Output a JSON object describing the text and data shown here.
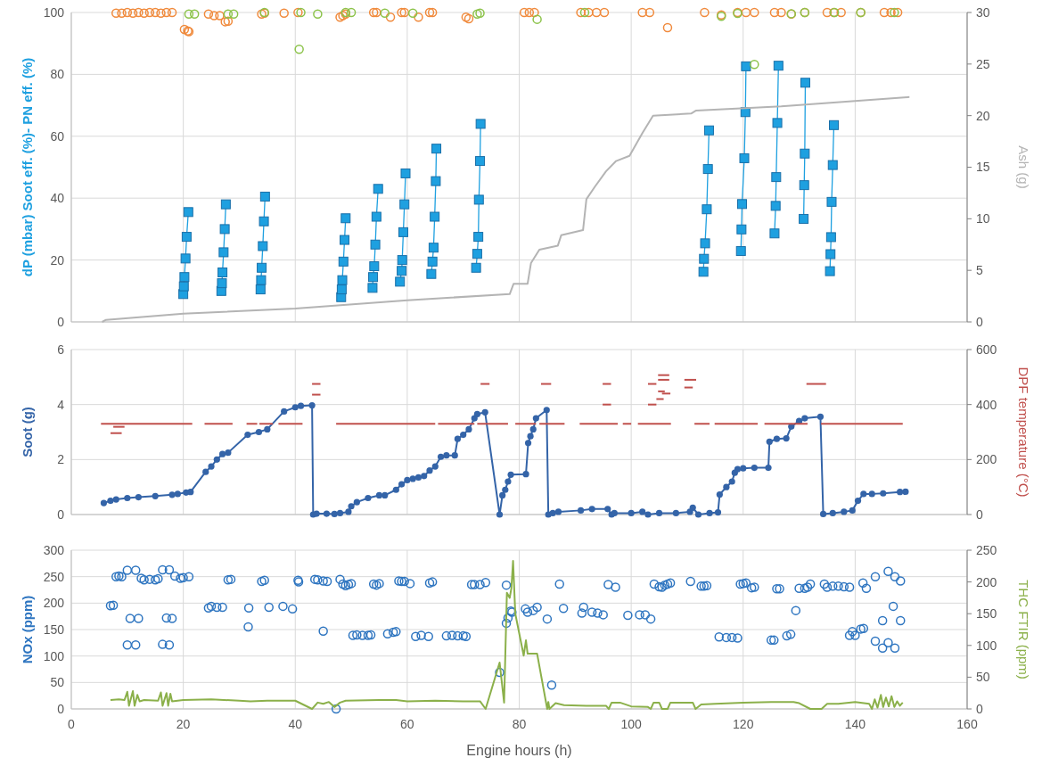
{
  "chart_data": [
    {
      "type": "line",
      "ylabel": "dP (mbar) Soot eff. (%)- PN eff. (%)",
      "y2label": "Ash (g)",
      "xlim": [
        0,
        160
      ],
      "xticks": [
        0,
        20,
        40,
        60,
        80,
        100,
        120,
        140,
        160
      ],
      "ylim": [
        0,
        100
      ],
      "yticks": [
        0,
        20,
        40,
        60,
        80,
        100
      ],
      "y2lim": [
        0,
        30
      ],
      "y2ticks": [
        0,
        5,
        10,
        15,
        20,
        25,
        30
      ],
      "grid": true,
      "tick_labels": "y",
      "series": [
        {
          "marker": "square",
          "color": "#1ea0e0",
          "x": [
            20.0,
            20.1,
            20.2,
            20.4,
            20.6,
            20.9
          ],
          "values": [
            9,
            11.5,
            14.5,
            20.5,
            27.5,
            35.5
          ]
        },
        {
          "marker": "square",
          "color": "#1ea0e0",
          "x": [
            26.8,
            26.9,
            27.0,
            27.2,
            27.4,
            27.6
          ],
          "values": [
            10,
            12.5,
            16,
            22.5,
            30,
            38
          ]
        },
        {
          "marker": "square",
          "color": "#1ea0e0",
          "x": [
            33.8,
            33.9,
            34.0,
            34.2,
            34.4,
            34.6
          ],
          "values": [
            10.5,
            13.5,
            17.5,
            24.5,
            32.5,
            40.5
          ]
        },
        {
          "marker": "square",
          "color": "#1ea0e0",
          "x": [
            48.2,
            48.3,
            48.4,
            48.6,
            48.8,
            49.0
          ],
          "values": [
            8,
            10.5,
            13.5,
            19.5,
            26.5,
            33.5
          ]
        },
        {
          "marker": "square",
          "color": "#1ea0e0",
          "x": [
            53.8,
            53.9,
            54.1,
            54.3,
            54.5,
            54.8
          ],
          "values": [
            11,
            14.5,
            18,
            25,
            34,
            43
          ]
        },
        {
          "marker": "square",
          "color": "#1ea0e0",
          "x": [
            58.7,
            59.0,
            59.1,
            59.3,
            59.5,
            59.7
          ],
          "values": [
            13,
            16.5,
            20,
            29,
            38,
            48
          ]
        },
        {
          "marker": "square",
          "color": "#1ea0e0",
          "x": [
            64.3,
            64.5,
            64.7,
            64.9,
            65.1,
            65.2
          ],
          "values": [
            15.5,
            19.5,
            24,
            34,
            45.5,
            56
          ]
        },
        {
          "marker": "square",
          "color": "#1ea0e0",
          "x": [
            72.3,
            72.5,
            72.7,
            72.8,
            73.0,
            73.1
          ],
          "values": [
            17.5,
            22,
            27.5,
            39.5,
            52,
            64
          ]
        },
        {
          "marker": "square",
          "color": "#1ea0e0",
          "x": [
            112.9,
            113.0,
            113.2,
            113.5,
            113.7,
            113.9
          ],
          "values": [
            16.2,
            20.4,
            25.4,
            36.4,
            49.4,
            61.9
          ]
        },
        {
          "marker": "square",
          "color": "#1ea0e0",
          "x": [
            119.6,
            119.7,
            119.8,
            120.2,
            120.4,
            120.5
          ],
          "values": [
            22.9,
            29.9,
            38.1,
            52.9,
            67.8,
            82.6
          ]
        },
        {
          "marker": "square",
          "color": "#1ea0e0",
          "x": [
            125.6,
            125.8,
            125.9,
            126.1,
            126.3
          ],
          "values": [
            28.6,
            37.5,
            46.8,
            64.3,
            82.8
          ]
        },
        {
          "marker": "square",
          "color": "#1ea0e0",
          "x": [
            130.8,
            130.9,
            131.0,
            131.1
          ],
          "values": [
            33.3,
            44.2,
            54.4,
            77.3
          ]
        },
        {
          "marker": "square",
          "color": "#1ea0e0",
          "x": [
            135.5,
            135.6,
            135.7,
            135.8,
            136.0,
            136.2
          ],
          "values": [
            16.4,
            21.9,
            27.4,
            38.8,
            50.7,
            63.6
          ]
        },
        {
          "type": "scatter",
          "marker": "circle",
          "color": "#f08a3c",
          "x": [
            8,
            9,
            10,
            11,
            12,
            13,
            14,
            15,
            16,
            17,
            18,
            20.2,
            20.8,
            21,
            24.5,
            25.5,
            26.5,
            27.5,
            28,
            34,
            34.5,
            38,
            40.5,
            48,
            48.5,
            49,
            54,
            54.5,
            57,
            59,
            59.5,
            62,
            64,
            64.5,
            70.5,
            71,
            80.9,
            81.8,
            82.7,
            91,
            92.4,
            93.8,
            95.2,
            102,
            103.3,
            106.5,
            113.1,
            116.1,
            119,
            120.5,
            122,
            125.6,
            126.8,
            128.6,
            131,
            135,
            136.2,
            137.5,
            141,
            145.2,
            146.4,
            147.6
          ],
          "values": [
            99.8,
            99.8,
            100,
            99.8,
            100,
            99.8,
            100,
            100,
            99.8,
            100,
            100,
            94.5,
            94,
            93.8,
            99.5,
            99,
            99,
            97,
            97.2,
            99.5,
            99.8,
            99.8,
            100,
            98.5,
            99,
            99.5,
            100,
            100,
            98.5,
            100,
            100,
            98.5,
            100,
            100,
            98.5,
            98,
            100,
            100,
            100,
            100,
            100,
            100,
            100,
            100,
            100,
            95.1,
            100,
            99.2,
            100,
            100,
            100,
            100,
            100,
            99.5,
            100,
            100,
            100,
            100,
            100,
            100,
            100,
            100
          ]
        },
        {
          "type": "scatter",
          "marker": "circle",
          "color": "#8cc34a",
          "x": [
            21,
            22,
            28,
            29,
            34.5,
            40.7,
            41,
            44,
            49,
            50,
            56,
            61,
            72.5,
            73,
            83.2,
            91.7,
            116.1,
            119,
            122,
            128.6,
            131,
            136.3,
            141,
            147
          ],
          "values": [
            99.5,
            99.5,
            99.5,
            99.5,
            100,
            88.1,
            100,
            99.5,
            100,
            100,
            99.8,
            99.8,
            99.5,
            99.8,
            97.8,
            100,
            98.8,
            99.7,
            83.2,
            99.6,
            100,
            100,
            100,
            100
          ]
        },
        {
          "axis": "y2",
          "marker": "none",
          "color": "#b4b4b4",
          "x": [
            5.5,
            6.2,
            20,
            40,
            60,
            78.3,
            79,
            81.5,
            82.1,
            83.6,
            86.9,
            87.5,
            91.4,
            92,
            93.5,
            95.5,
            97.3,
            99.7,
            102,
            103.9,
            110.7,
            111.6,
            126.8,
            149.7
          ],
          "values": [
            0,
            0.2,
            0.8,
            1.3,
            2.1,
            2.7,
            3.7,
            3.7,
            5.7,
            7.0,
            7.4,
            8.4,
            8.9,
            11.9,
            13.1,
            14.6,
            15.6,
            16.1,
            18.3,
            20.0,
            20.2,
            20.5,
            20.9,
            21.8
          ]
        }
      ]
    },
    {
      "type": "line",
      "ylabel": "Soot (g)",
      "y2label": "DPF temperature (°C)",
      "xlim": [
        0,
        160
      ],
      "xticks": [
        0,
        20,
        40,
        60,
        80,
        100,
        120,
        140,
        160
      ],
      "ylim": [
        0,
        6
      ],
      "yticks": [
        0,
        2,
        4,
        6
      ],
      "y2lim": [
        0,
        600
      ],
      "y2ticks": [
        0,
        200,
        400,
        600
      ],
      "grid": true,
      "tick_labels": "y",
      "series": [
        {
          "marker": "circle",
          "color": "#3464a8",
          "x": [
            5.8,
            7,
            8,
            10,
            12,
            15,
            18,
            19,
            20.5,
            21.3,
            24,
            25,
            26,
            27,
            28,
            31.5,
            33.5,
            35,
            38,
            40,
            41,
            43,
            43.2,
            43.8,
            45.6,
            47,
            48,
            49.5,
            50,
            51,
            53,
            55,
            56,
            58,
            59,
            60,
            61,
            62,
            63,
            64,
            65,
            66,
            67,
            68.5,
            69,
            70,
            71,
            72,
            72.5,
            73.9,
            76.5,
            77,
            77.5,
            78,
            78.5,
            81.2,
            81.6,
            82,
            82.5,
            83,
            84.9,
            85.2,
            86,
            87,
            91,
            93,
            95.8,
            96.5,
            97,
            100,
            102,
            103,
            105,
            108,
            110.5,
            111,
            112,
            114,
            115.5,
            115.8,
            117,
            118,
            118.5,
            119,
            120,
            122,
            124.5,
            124.7,
            126,
            127.7,
            128.6,
            130,
            131,
            133.8,
            134.3,
            136,
            138,
            139.5,
            140.5,
            141.5,
            143,
            145,
            148,
            149
          ],
          "values": [
            0.42,
            0.5,
            0.55,
            0.6,
            0.63,
            0.67,
            0.72,
            0.75,
            0.8,
            0.82,
            1.55,
            1.75,
            2.0,
            2.2,
            2.25,
            2.9,
            3.0,
            3.1,
            3.75,
            3.9,
            3.95,
            3.97,
            0,
            0.03,
            0.03,
            0.02,
            0.05,
            0.1,
            0.3,
            0.45,
            0.6,
            0.7,
            0.7,
            0.9,
            1.1,
            1.25,
            1.3,
            1.35,
            1.4,
            1.6,
            1.75,
            2.1,
            2.15,
            2.15,
            2.75,
            2.9,
            3.1,
            3.5,
            3.65,
            3.72,
            0,
            0.7,
            0.9,
            1.2,
            1.45,
            1.47,
            2.6,
            2.85,
            3.1,
            3.5,
            3.8,
            0,
            0.05,
            0.1,
            0.15,
            0.2,
            0.2,
            0,
            0.05,
            0.05,
            0.1,
            0,
            0.05,
            0.05,
            0.1,
            0.25,
            0,
            0.05,
            0.08,
            0.73,
            1.0,
            1.2,
            1.52,
            1.65,
            1.68,
            1.7,
            1.7,
            2.65,
            2.75,
            2.77,
            3.2,
            3.4,
            3.5,
            3.56,
            0.02,
            0.05,
            0.1,
            0.15,
            0.5,
            0.75,
            0.75,
            0.77,
            0.82,
            0.83
          ]
        },
        {
          "axis": "y2",
          "marker": "none",
          "color": "#c0504d",
          "x": [
            5.3,
            21.6
          ],
          "values": [
            330,
            330
          ]
        },
        {
          "axis": "y2",
          "marker": "none",
          "color": "#c0504d",
          "x": [
            23.8,
            28.8
          ],
          "values": [
            330,
            330
          ]
        },
        {
          "axis": "y2",
          "marker": "none",
          "color": "#c0504d",
          "x": [
            31.3,
            33.2
          ],
          "values": [
            330,
            330
          ]
        },
        {
          "axis": "y2",
          "marker": "none",
          "color": "#c0504d",
          "x": [
            33.6,
            36
          ],
          "values": [
            330,
            330
          ]
        },
        {
          "axis": "y2",
          "marker": "none",
          "color": "#c0504d",
          "x": [
            37,
            41.3
          ],
          "values": [
            330,
            330
          ]
        },
        {
          "axis": "y2",
          "marker": "none",
          "color": "#c0504d",
          "x": [
            47.3,
            65
          ],
          "values": [
            330,
            330
          ]
        },
        {
          "axis": "y2",
          "marker": "none",
          "color": "#c0504d",
          "x": [
            65.5,
            72
          ],
          "values": [
            330,
            330
          ]
        },
        {
          "axis": "y2",
          "marker": "none",
          "color": "#c0504d",
          "x": [
            72.5,
            78
          ],
          "values": [
            330,
            330
          ]
        },
        {
          "axis": "y2",
          "marker": "none",
          "color": "#c0504d",
          "x": [
            79.3,
            83
          ],
          "values": [
            330,
            330
          ]
        },
        {
          "axis": "y2",
          "marker": "none",
          "color": "#c0504d",
          "x": [
            83.6,
            88.1
          ],
          "values": [
            330,
            330
          ]
        },
        {
          "axis": "y2",
          "marker": "none",
          "color": "#c0504d",
          "x": [
            90.8,
            97.6
          ],
          "values": [
            330,
            330
          ]
        },
        {
          "axis": "y2",
          "marker": "none",
          "color": "#c0504d",
          "x": [
            98.5,
            100
          ],
          "values": [
            330,
            330
          ]
        },
        {
          "axis": "y2",
          "marker": "none",
          "color": "#c0504d",
          "x": [
            101.2,
            107.1
          ],
          "values": [
            330,
            330
          ]
        },
        {
          "axis": "y2",
          "marker": "none",
          "color": "#c0504d",
          "x": [
            111.3,
            114
          ],
          "values": [
            330,
            330
          ]
        },
        {
          "axis": "y2",
          "marker": "none",
          "color": "#c0504d",
          "x": [
            114.9,
            122.6
          ],
          "values": [
            330,
            330
          ]
        },
        {
          "axis": "y2",
          "marker": "none",
          "color": "#c0504d",
          "x": [
            123.8,
            131.5
          ],
          "values": [
            330,
            330
          ]
        },
        {
          "axis": "y2",
          "marker": "none",
          "color": "#c0504d",
          "x": [
            133.9,
            148.5
          ],
          "values": [
            330,
            330
          ]
        },
        {
          "axis": "y2",
          "marker": "none",
          "color": "#c0504d",
          "x": [
            7,
            9
          ],
          "values": [
            296,
            296
          ]
        },
        {
          "axis": "y2",
          "marker": "none",
          "color": "#c0504d",
          "x": [
            7.5,
            9.5
          ],
          "values": [
            319,
            319
          ]
        },
        {
          "axis": "y2",
          "marker": "none",
          "color": "#c0504d",
          "x": [
            43,
            44.5
          ],
          "values": [
            475,
            475
          ]
        },
        {
          "axis": "y2",
          "marker": "none",
          "color": "#c0504d",
          "x": [
            43,
            44.5
          ],
          "values": [
            436,
            436
          ]
        },
        {
          "axis": "y2",
          "marker": "none",
          "color": "#c0504d",
          "x": [
            73.1,
            74.7
          ],
          "values": [
            475,
            475
          ]
        },
        {
          "axis": "y2",
          "marker": "none",
          "color": "#c0504d",
          "x": [
            83.9,
            85.7
          ],
          "values": [
            475,
            475
          ]
        },
        {
          "axis": "y2",
          "marker": "none",
          "color": "#c0504d",
          "x": [
            94.9,
            96.4
          ],
          "values": [
            475,
            475
          ]
        },
        {
          "axis": "y2",
          "marker": "none",
          "color": "#c0504d",
          "x": [
            94.9,
            96.4
          ],
          "values": [
            400,
            400
          ]
        },
        {
          "axis": "y2",
          "marker": "none",
          "color": "#c0504d",
          "x": [
            103,
            104.5
          ],
          "values": [
            475,
            475
          ]
        },
        {
          "axis": "y2",
          "marker": "none",
          "color": "#c0504d",
          "x": [
            103,
            104.5
          ],
          "values": [
            400,
            400
          ]
        },
        {
          "axis": "y2",
          "marker": "none",
          "color": "#c0504d",
          "x": [
            104.8,
            106.8
          ],
          "values": [
            507,
            507
          ]
        },
        {
          "axis": "y2",
          "marker": "none",
          "color": "#c0504d",
          "x": [
            104.8,
            106.8
          ],
          "values": [
            490,
            490
          ]
        },
        {
          "axis": "y2",
          "marker": "none",
          "color": "#c0504d",
          "x": [
            104.8,
            106
          ],
          "values": [
            448,
            448
          ]
        },
        {
          "axis": "y2",
          "marker": "none",
          "color": "#c0504d",
          "x": [
            105.5,
            107
          ],
          "values": [
            440,
            440
          ]
        },
        {
          "axis": "y2",
          "marker": "none",
          "color": "#c0504d",
          "x": [
            104.5,
            105.8
          ],
          "values": [
            420,
            420
          ]
        },
        {
          "axis": "y2",
          "marker": "none",
          "color": "#c0504d",
          "x": [
            109.5,
            111.6
          ],
          "values": [
            490,
            490
          ]
        },
        {
          "axis": "y2",
          "marker": "none",
          "color": "#c0504d",
          "x": [
            109.5,
            111
          ],
          "values": [
            462,
            462
          ]
        },
        {
          "axis": "y2",
          "marker": "none",
          "color": "#c0504d",
          "x": [
            131.3,
            134.8
          ],
          "values": [
            475,
            475
          ]
        }
      ]
    },
    {
      "type": "line",
      "xlabel": "Engine hours (h)",
      "ylabel": "NOx (ppm)",
      "y2label": "THC FTIR (ppm)",
      "xlim": [
        0,
        160
      ],
      "xticks": [
        0,
        20,
        40,
        60,
        80,
        100,
        120,
        140,
        160
      ],
      "ylim": [
        0,
        300
      ],
      "yticks": [
        0,
        50,
        100,
        150,
        200,
        250,
        300
      ],
      "y2lim": [
        0,
        250
      ],
      "y2ticks": [
        0,
        50,
        100,
        150,
        200,
        250
      ],
      "grid": true,
      "series": [
        {
          "type": "scatter",
          "marker": "circle",
          "color": "#2e75c0",
          "x": [
            7,
            7.5,
            8,
            8.5,
            9,
            10,
            10,
            10.5,
            11.5,
            11.5,
            12,
            12.5,
            13,
            14,
            15,
            15.5,
            16.3,
            16.3,
            17,
            17.5,
            17.5,
            18,
            18.5,
            19.5,
            20,
            21,
            24.5,
            25,
            26,
            27,
            28,
            28.5,
            31.7,
            31.6,
            34,
            34.5,
            35.3,
            37.8,
            39.5,
            40.5,
            40.6,
            43.5,
            44,
            45,
            45,
            45.7,
            47.3,
            48,
            48.5,
            49,
            49.5,
            50,
            50.3,
            51,
            52,
            53,
            53.5,
            54,
            54.5,
            55,
            56.5,
            57.5,
            58,
            58.5,
            59,
            59.5,
            60.5,
            61.5,
            62.5,
            63.8,
            64,
            64.5,
            67,
            68,
            69,
            70,
            70.5,
            71.5,
            72,
            73,
            74,
            76.5,
            77.7,
            77.7,
            78,
            78.5,
            78.7,
            81.1,
            81.5,
            82.5,
            83.2,
            85,
            85.8,
            87.2,
            87.9,
            91.2,
            91.5,
            93,
            94,
            95,
            95.9,
            97.2,
            99.4,
            101.5,
            102.5,
            103.5,
            104.1,
            105,
            105.5,
            106,
            106.5,
            107,
            110.6,
            112.5,
            113,
            113.5,
            115.7,
            117,
            118,
            119,
            119.5,
            120,
            120.5,
            121.5,
            122,
            125,
            125.5,
            126,
            126.5,
            127.8,
            128.5,
            129.4,
            130,
            131,
            131.5,
            132,
            134.5,
            135,
            136,
            137,
            138,
            139,
            139,
            139.5,
            140,
            141,
            141.5,
            141.4,
            142,
            143.6,
            143.6,
            144.9,
            144.9,
            145.9,
            145.9,
            146.8,
            147.1,
            147.1,
            148.1,
            148.1
          ],
          "values": [
            195,
            196,
            250,
            251,
            250,
            262,
            121,
            171,
            262,
            121,
            171,
            247,
            244,
            245,
            244,
            246,
            263,
            122,
            172,
            263,
            121,
            171,
            251,
            247,
            248,
            250,
            191,
            194,
            192,
            192,
            244,
            245,
            191,
            155,
            241,
            243,
            192,
            194,
            189,
            243,
            240,
            245,
            244,
            242,
            147,
            241,
            0,
            245,
            236,
            233,
            235,
            237,
            139,
            140,
            139,
            139,
            140,
            236,
            234,
            237,
            142,
            145,
            146,
            242,
            241,
            241,
            237,
            137,
            139,
            137,
            238,
            240,
            138,
            139,
            138,
            138,
            137,
            235,
            235,
            235,
            239,
            69,
            234,
            162,
            172,
            185,
            183,
            189,
            183,
            186,
            192,
            170,
            45,
            236,
            190,
            181,
            192,
            183,
            181,
            178,
            235,
            230,
            177,
            178,
            178,
            170,
            236,
            231,
            230,
            234,
            236,
            238,
            241,
            232,
            232,
            233,
            136,
            135,
            135,
            134,
            236,
            237,
            238,
            229,
            230,
            130,
            130,
            227,
            227,
            138,
            141,
            186,
            228,
            228,
            230,
            236,
            236,
            230,
            232,
            232,
            231,
            230,
            139,
            146,
            139,
            151,
            152,
            238,
            228,
            128,
            250,
            115,
            167,
            260,
            125,
            194,
            115,
            250,
            167,
            242
          ]
        },
        {
          "axis": "y2",
          "marker": "none",
          "color": "#8bb04a",
          "x": [
            7,
            8.5,
            9.5,
            10,
            10.3,
            11,
            11.3,
            11.8,
            12.2,
            13,
            15.5,
            16,
            16.3,
            17,
            17.3,
            17.7,
            18,
            20,
            25,
            30,
            32,
            35,
            40,
            43,
            44,
            45,
            46,
            47,
            48,
            49,
            55,
            58,
            60,
            65,
            70,
            73,
            74,
            76.5,
            77.3,
            77.8,
            78.3,
            78.6,
            78.9,
            79.3,
            80.8,
            81.2,
            81.5,
            83.2,
            85,
            85.2,
            85.4,
            86.5,
            88,
            92,
            95.5,
            96,
            96.5,
            98,
            100,
            103,
            103.5,
            104,
            105,
            105.5,
            106.5,
            107,
            111,
            111.5,
            112.5,
            115,
            120,
            125,
            129,
            130,
            132,
            134,
            135,
            137,
            140,
            142.5,
            143,
            143.5,
            144,
            144.6,
            145,
            145.5,
            146,
            146.5,
            147,
            147.5,
            148,
            148.5
          ],
          "values": [
            14,
            15,
            14,
            27,
            5,
            28,
            5,
            22,
            12,
            14,
            13,
            26,
            5,
            25,
            5,
            24,
            12,
            14,
            15,
            13,
            12,
            13,
            13,
            0,
            10,
            8,
            11,
            3,
            10,
            13,
            14,
            14,
            12,
            13,
            12,
            12,
            0,
            73,
            10,
            183,
            175,
            190,
            233,
            150,
            84,
            108,
            87,
            87,
            0,
            11,
            0,
            9,
            6,
            5,
            5,
            0,
            10,
            10,
            4,
            3,
            0,
            10,
            10,
            0,
            0,
            10,
            10,
            0,
            7,
            8,
            10,
            11,
            11,
            9,
            0,
            0,
            8,
            8,
            11,
            8,
            0,
            15,
            2,
            22,
            3,
            18,
            4,
            20,
            3,
            12,
            5,
            10
          ]
        }
      ]
    }
  ]
}
